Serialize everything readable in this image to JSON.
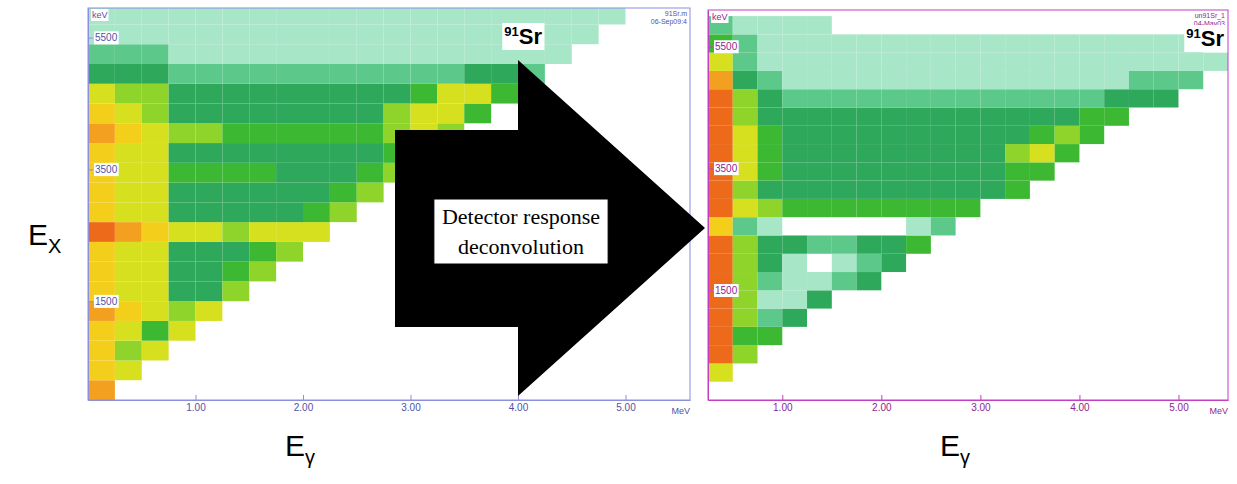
{
  "chart_data": [
    {
      "type": "heatmap",
      "title": "91Sr",
      "header": [
        "91Sr.m",
        "06-Sep09:4"
      ],
      "x_label": "Eγ",
      "y_label": "EX",
      "x_unit": "MeV",
      "y_unit": "keV",
      "xlim": [
        0,
        5.6
      ],
      "ylim": [
        0,
        5950
      ],
      "xticks": [
        {
          "value": 1,
          "label": "1.00"
        },
        {
          "value": 2,
          "label": "2.00"
        },
        {
          "value": 3,
          "label": "3.00"
        },
        {
          "value": 4,
          "label": "4.00"
        },
        {
          "value": 5,
          "label": "5.00"
        }
      ],
      "yticks": [
        1500,
        3500,
        5500
      ],
      "zlim": [
        0,
        10
      ],
      "x_bins": [
        0,
        0.25,
        0.5,
        0.75,
        1,
        1.25,
        1.5,
        1.75,
        2,
        2.25,
        2.5,
        2.75,
        3,
        3.25,
        3.5,
        3.75,
        4,
        4.25,
        4.5,
        4.75,
        5,
        5.25,
        5.5
      ],
      "y_bins": [
        0,
        300,
        600,
        900,
        1200,
        1500,
        1800,
        2100,
        2400,
        2700,
        3000,
        3300,
        3600,
        3900,
        4200,
        4500,
        4800,
        5100,
        5400,
        5700,
        6000
      ],
      "values": [
        [
          8,
          0,
          0,
          0,
          0,
          0,
          0,
          0,
          0,
          0,
          0,
          0,
          0,
          0,
          0,
          0,
          0,
          0,
          0,
          0,
          0,
          0
        ],
        [
          7,
          6,
          0,
          0,
          0,
          0,
          0,
          0,
          0,
          0,
          0,
          0,
          0,
          0,
          0,
          0,
          0,
          0,
          0,
          0,
          0,
          0
        ],
        [
          7,
          5,
          6,
          0,
          0,
          0,
          0,
          0,
          0,
          0,
          0,
          0,
          0,
          0,
          0,
          0,
          0,
          0,
          0,
          0,
          0,
          0
        ],
        [
          7,
          6,
          4,
          6,
          0,
          0,
          0,
          0,
          0,
          0,
          0,
          0,
          0,
          0,
          0,
          0,
          0,
          0,
          0,
          0,
          0,
          0
        ],
        [
          8,
          7,
          6,
          5,
          6,
          0,
          0,
          0,
          0,
          0,
          0,
          0,
          0,
          0,
          0,
          0,
          0,
          0,
          0,
          0,
          0,
          0
        ],
        [
          7,
          6,
          6,
          3,
          3,
          5,
          0,
          0,
          0,
          0,
          0,
          0,
          0,
          0,
          0,
          0,
          0,
          0,
          0,
          0,
          0,
          0
        ],
        [
          7,
          6,
          6,
          3,
          3,
          4,
          5,
          0,
          0,
          0,
          0,
          0,
          0,
          0,
          0,
          0,
          0,
          0,
          0,
          0,
          0,
          0
        ],
        [
          7,
          6,
          6,
          3,
          3,
          3,
          4,
          5,
          0,
          0,
          0,
          0,
          0,
          0,
          0,
          0,
          0,
          0,
          0,
          0,
          0,
          0
        ],
        [
          9,
          8,
          7,
          6,
          6,
          5,
          6,
          6,
          6,
          0,
          0,
          0,
          0,
          0,
          0,
          0,
          0,
          0,
          0,
          0,
          0,
          0
        ],
        [
          7,
          6,
          6,
          3,
          3,
          3,
          3,
          3,
          4,
          5,
          0,
          0,
          0,
          0,
          0,
          0,
          0,
          0,
          0,
          0,
          0,
          0
        ],
        [
          7,
          6,
          6,
          3,
          3,
          3,
          3,
          3,
          3,
          4,
          5,
          0,
          0,
          0,
          0,
          0,
          0,
          0,
          0,
          0,
          0,
          0
        ],
        [
          7,
          6,
          6,
          4,
          4,
          4,
          4,
          3,
          3,
          3,
          4,
          5,
          0,
          0,
          0,
          0,
          0,
          0,
          0,
          0,
          0,
          0
        ],
        [
          7,
          6,
          6,
          3,
          3,
          3,
          3,
          3,
          3,
          3,
          3,
          4,
          5,
          0,
          0,
          0,
          0,
          0,
          0,
          0,
          0,
          0
        ],
        [
          8,
          7,
          6,
          5,
          5,
          4,
          4,
          4,
          4,
          4,
          4,
          5,
          6,
          5,
          0,
          0,
          0,
          0,
          0,
          0,
          0,
          0
        ],
        [
          7,
          6,
          5,
          3,
          3,
          3,
          3,
          3,
          3,
          3,
          3,
          5,
          6,
          6,
          4,
          0,
          0,
          0,
          0,
          0,
          0,
          0
        ],
        [
          6,
          5,
          5,
          3,
          3,
          3,
          3,
          3,
          3,
          3,
          3,
          3,
          4,
          6,
          6,
          4,
          0,
          0,
          0,
          0,
          0,
          0
        ],
        [
          3,
          3,
          3,
          2,
          2,
          2,
          2,
          2,
          2,
          2,
          2,
          2,
          2,
          2,
          3,
          3,
          2,
          0,
          0,
          0,
          0,
          0
        ],
        [
          2,
          2,
          2,
          1,
          1,
          1,
          1,
          1,
          1,
          1,
          1,
          1,
          1,
          1,
          1,
          1,
          1,
          1,
          0,
          0,
          0,
          0
        ],
        [
          1,
          1,
          1,
          1,
          1,
          1,
          1,
          1,
          1,
          1,
          1,
          1,
          1,
          1,
          1,
          1,
          1,
          1,
          1,
          0,
          0,
          0
        ],
        [
          1,
          1,
          1,
          1,
          1,
          1,
          1,
          1,
          1,
          1,
          1,
          1,
          1,
          1,
          1,
          1,
          1,
          1,
          1,
          1,
          0,
          0
        ]
      ]
    },
    {
      "type": "heatmap",
      "title": "91Sr",
      "header": [
        "un91Sr_1",
        "04-May03"
      ],
      "x_label": "Eγ",
      "x_unit": "MeV",
      "y_unit": "keV",
      "xlim": [
        0.25,
        5.5
      ],
      "ylim": [
        -300,
        6100
      ],
      "xticks": [
        {
          "value": 1,
          "label": "1.00"
        },
        {
          "value": 2,
          "label": "2.00"
        },
        {
          "value": 3,
          "label": "3.00"
        },
        {
          "value": 4,
          "label": "4.00"
        },
        {
          "value": 5,
          "label": "5.00"
        }
      ],
      "yticks": [
        1500,
        3500,
        5500
      ],
      "zlim": [
        0,
        10
      ],
      "x_bins": [
        0,
        0.25,
        0.5,
        0.75,
        1,
        1.25,
        1.5,
        1.75,
        2,
        2.25,
        2.5,
        2.75,
        3,
        3.25,
        3.5,
        3.75,
        4,
        4.25,
        4.5,
        4.75,
        5,
        5.25,
        5.5
      ],
      "y_bins": [
        0,
        300,
        600,
        900,
        1200,
        1500,
        1800,
        2100,
        2400,
        2700,
        3000,
        3300,
        3600,
        3900,
        4200,
        4500,
        4800,
        5100,
        5400,
        5700,
        6000
      ],
      "values": [
        [
          0,
          6,
          0,
          0,
          0,
          0,
          0,
          0,
          0,
          0,
          0,
          0,
          0,
          0,
          0,
          0,
          0,
          0,
          0,
          0,
          0,
          0
        ],
        [
          0,
          9,
          5,
          0,
          0,
          0,
          0,
          0,
          0,
          0,
          0,
          0,
          0,
          0,
          0,
          0,
          0,
          0,
          0,
          0,
          0,
          0
        ],
        [
          0,
          9,
          4,
          4,
          0,
          0,
          0,
          0,
          0,
          0,
          0,
          0,
          0,
          0,
          0,
          0,
          0,
          0,
          0,
          0,
          0,
          0
        ],
        [
          0,
          9,
          5,
          2,
          3,
          0,
          0,
          0,
          0,
          0,
          0,
          0,
          0,
          0,
          0,
          0,
          0,
          0,
          0,
          0,
          0,
          0
        ],
        [
          0,
          9,
          5,
          1,
          1,
          3,
          0,
          0,
          0,
          0,
          0,
          0,
          0,
          0,
          0,
          0,
          0,
          0,
          0,
          0,
          0,
          0
        ],
        [
          0,
          9,
          5,
          2,
          1,
          1,
          2,
          3,
          0,
          0,
          0,
          0,
          0,
          0,
          0,
          0,
          0,
          0,
          0,
          0,
          0,
          0
        ],
        [
          0,
          9,
          5,
          3,
          1,
          0,
          1,
          2,
          3,
          0,
          0,
          0,
          0,
          0,
          0,
          0,
          0,
          0,
          0,
          0,
          0,
          0
        ],
        [
          0,
          9,
          5,
          3,
          3,
          2,
          2,
          3,
          3,
          4,
          0,
          0,
          0,
          0,
          0,
          0,
          0,
          0,
          0,
          0,
          0,
          0
        ],
        [
          0,
          7,
          2,
          1,
          0,
          0,
          0,
          0,
          0,
          1,
          2,
          0,
          0,
          0,
          0,
          0,
          0,
          0,
          0,
          0,
          0,
          0
        ],
        [
          0,
          9,
          6,
          5,
          4,
          4,
          4,
          4,
          4,
          4,
          4,
          4,
          0,
          0,
          0,
          0,
          0,
          0,
          0,
          0,
          0,
          0
        ],
        [
          0,
          9,
          5,
          3,
          3,
          3,
          3,
          3,
          3,
          3,
          3,
          3,
          3,
          4,
          0,
          0,
          0,
          0,
          0,
          0,
          0,
          0
        ],
        [
          0,
          9,
          6,
          4,
          3,
          3,
          3,
          3,
          3,
          3,
          3,
          3,
          3,
          4,
          4,
          0,
          0,
          0,
          0,
          0,
          0,
          0
        ],
        [
          0,
          9,
          6,
          4,
          3,
          3,
          3,
          3,
          3,
          3,
          3,
          3,
          3,
          5,
          6,
          4,
          0,
          0,
          0,
          0,
          0,
          0
        ],
        [
          0,
          9,
          6,
          4,
          3,
          3,
          3,
          3,
          3,
          3,
          3,
          3,
          3,
          3,
          4,
          5,
          4,
          0,
          0,
          0,
          0,
          0
        ],
        [
          0,
          9,
          5,
          3,
          3,
          3,
          3,
          3,
          3,
          3,
          3,
          3,
          3,
          3,
          3,
          3,
          4,
          4,
          0,
          0,
          0,
          0
        ],
        [
          0,
          9,
          5,
          3,
          2,
          2,
          2,
          2,
          2,
          2,
          2,
          2,
          2,
          2,
          2,
          2,
          2,
          3,
          3,
          3,
          0,
          0
        ],
        [
          0,
          8,
          3,
          2,
          1,
          1,
          1,
          1,
          1,
          1,
          1,
          1,
          1,
          1,
          1,
          1,
          1,
          1,
          2,
          2,
          2,
          0
        ],
        [
          0,
          6,
          2,
          1,
          1,
          1,
          1,
          1,
          1,
          1,
          1,
          1,
          1,
          1,
          1,
          1,
          1,
          1,
          1,
          1,
          1,
          1
        ],
        [
          0,
          4,
          2,
          1,
          1,
          1,
          1,
          1,
          1,
          1,
          1,
          1,
          1,
          1,
          1,
          1,
          1,
          1,
          1,
          1,
          1,
          0
        ],
        [
          0,
          2,
          1,
          1,
          1,
          1,
          0,
          0,
          0,
          0,
          0,
          0,
          0,
          0,
          0,
          0,
          0,
          0,
          0,
          0,
          0,
          0
        ]
      ]
    }
  ],
  "arrow_label": "Detector response deconvolution"
}
